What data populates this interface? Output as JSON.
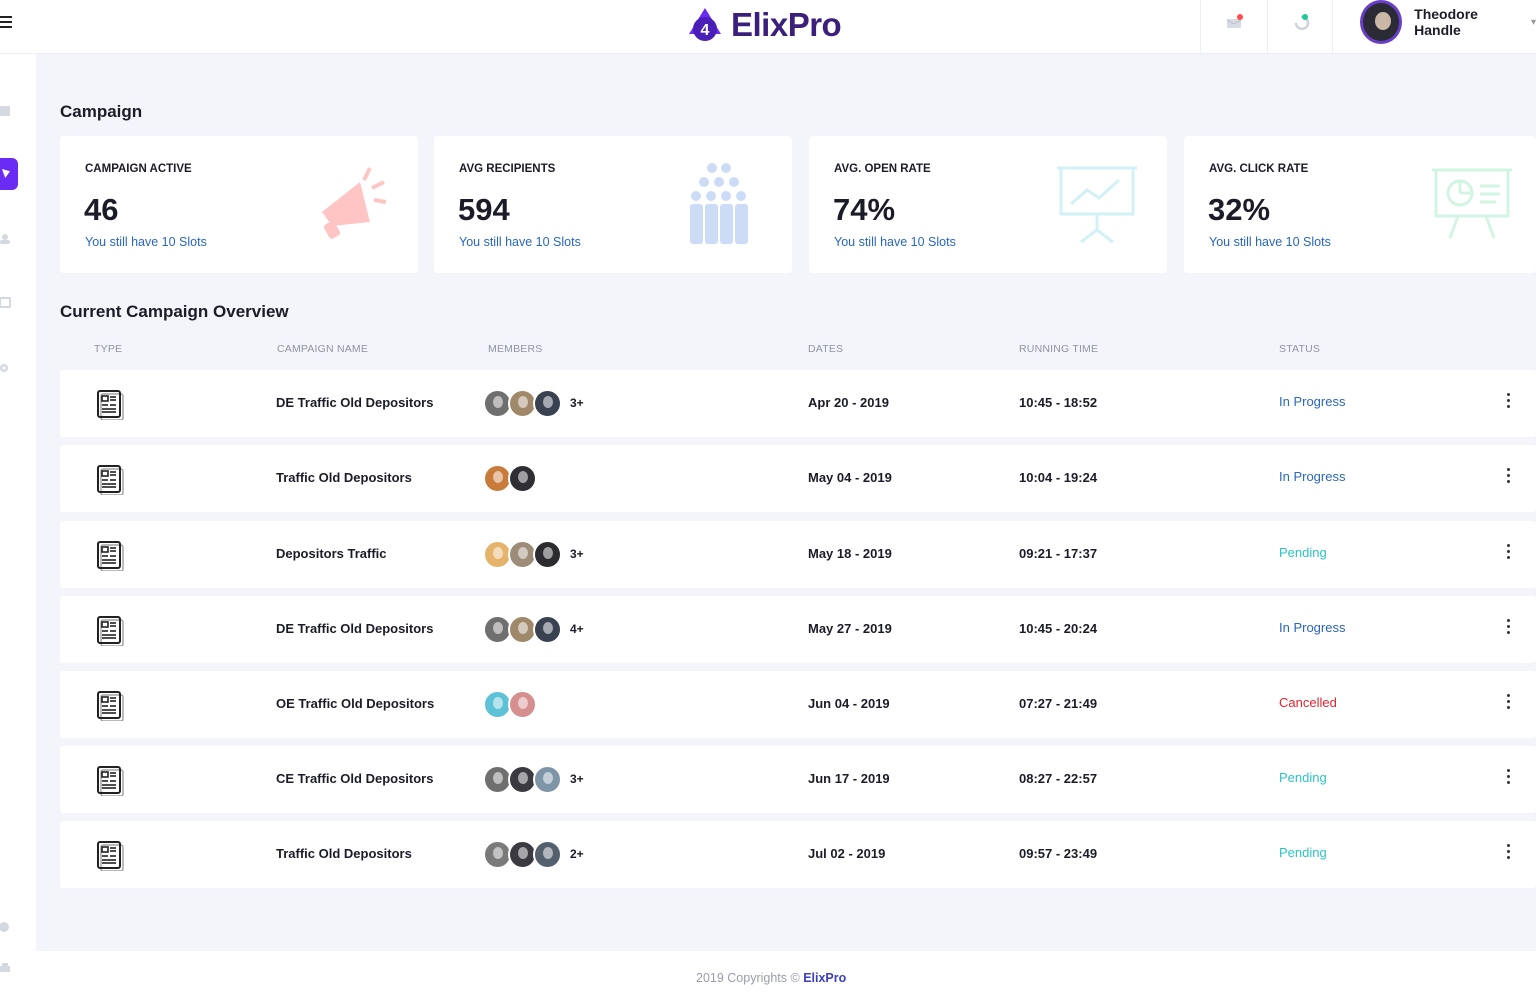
{
  "app": {
    "brand": "ElixPro",
    "brand_badge": "4"
  },
  "header": {
    "user_name": "Theodore Handle",
    "icons": [
      "menu-icon",
      "mail-icon",
      "refresh-icon",
      "chevron-down-icon"
    ]
  },
  "sidebar": {
    "items": [
      "dashboard-icon",
      "campaign-icon",
      "users-icon",
      "chat-icon",
      "settings-icon",
      "help-icon",
      "print-icon"
    ],
    "active": "campaign-icon"
  },
  "campaign": {
    "title": "Campaign",
    "cards": [
      {
        "label": "CAMPAIGN ACTIVE",
        "value": "46",
        "note": "You still have 10 Slots",
        "icon": "megaphone-icon",
        "color": "#ff6b6b"
      },
      {
        "label": "AVG RECIPIENTS",
        "value": "594",
        "note": "You still have 10 Slots",
        "icon": "people-icon",
        "color": "#8fb3ef"
      },
      {
        "label": "AVG. OPEN RATE",
        "value": "74%",
        "note": "You still have 10 Slots",
        "icon": "presentation-chart-icon",
        "color": "#7fd9ea"
      },
      {
        "label": "AVG. CLICK RATE",
        "value": "32%",
        "note": "You still have 10 Slots",
        "icon": "presentation-pie-icon",
        "color": "#7fe0b0"
      }
    ]
  },
  "overview": {
    "title": "Current Campaign Overview",
    "columns": [
      "TYPE",
      "CAMPAIGN NAME",
      "MEMBERS",
      "DATES",
      "RUNNING TIME",
      "STATUS"
    ],
    "rows": [
      {
        "name": "DE Traffic Old Depositors",
        "avatars": [
          "#6f6f6f",
          "#a0886a",
          "#3a4252"
        ],
        "more": "3+",
        "date": "Apr 20 - 2019",
        "time": "10:45 - 18:52",
        "status": "In Progress",
        "status_color": "#2966c2"
      },
      {
        "name": "Traffic Old Depositors",
        "avatars": [
          "#c97b3c",
          "#2e2e33"
        ],
        "more": "",
        "date": "May 04 - 2019",
        "time": "10:04 - 19:24",
        "status": "In Progress",
        "status_color": "#2966c2"
      },
      {
        "name": "Depositors Traffic",
        "avatars": [
          "#e6b36a",
          "#9c8c78",
          "#2b2b30"
        ],
        "more": "3+",
        "date": "May 18 - 2019",
        "time": "09:21 - 17:37",
        "status": "Pending",
        "status_color": "#2bc4c4"
      },
      {
        "name": "DE Traffic Old Depositors",
        "avatars": [
          "#6f6f6f",
          "#a0886a",
          "#3a4252"
        ],
        "more": "4+",
        "date": "May 27 - 2019",
        "time": "10:45 - 20:24",
        "status": "In Progress",
        "status_color": "#2966c2"
      },
      {
        "name": "OE Traffic Old Depositors",
        "avatars": [
          "#5ec2d6",
          "#d68f8f"
        ],
        "more": "",
        "date": "Jun 04 - 2019",
        "time": "07:27 - 21:49",
        "status": "Cancelled",
        "status_color": "#e0242e"
      },
      {
        "name": "CE Traffic Old Depositors",
        "avatars": [
          "#6f6f6f",
          "#3a3a40",
          "#7e95a8"
        ],
        "more": "3+",
        "date": "Jun 17 - 2019",
        "time": "08:27 - 22:57",
        "status": "Pending",
        "status_color": "#2bc4c4"
      },
      {
        "name": "Traffic Old Depositors",
        "avatars": [
          "#7a7a7a",
          "#3a3a40",
          "#55606e"
        ],
        "more": "2+",
        "date": "Jul 02 - 2019",
        "time": "09:57 - 23:49",
        "status": "Pending",
        "status_color": "#2bc4c4"
      }
    ]
  },
  "footer": {
    "text": "2019 Copyrights © ",
    "brand": "ElixPro"
  }
}
